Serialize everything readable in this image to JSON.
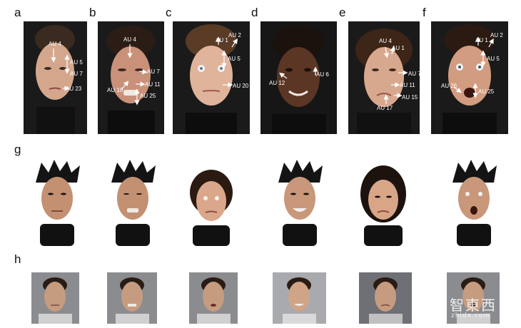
{
  "panels": {
    "a": {
      "label": "a",
      "aus": [
        "AU 4",
        "AU 5",
        "AU 7",
        "AU 23"
      ]
    },
    "b": {
      "label": "b",
      "aus": [
        "AU 4",
        "AU 7",
        "AU 10",
        "AU 11",
        "AU 25"
      ]
    },
    "c": {
      "label": "c",
      "aus": [
        "AU 1",
        "AU 2",
        "AU 5",
        "AU 20"
      ]
    },
    "d": {
      "label": "d",
      "aus": [
        "AU 12",
        "AU 6"
      ]
    },
    "e": {
      "label": "e",
      "aus": [
        "AU 4",
        "AU 1",
        "AU 7",
        "AU 11",
        "AU 15",
        "AU 17"
      ]
    },
    "f": {
      "label": "f",
      "aus": [
        "AU 1",
        "AU 2",
        "AU 5",
        "AU 26",
        "AU 25"
      ]
    },
    "g": {
      "label": "g"
    },
    "h": {
      "label": "h"
    }
  },
  "watermark": {
    "main": "智東西",
    "sub": "zhidx.com"
  },
  "colors": {
    "photo_bg_dark": "#1a1a1a",
    "photo_bg_grey": "#8a8c90",
    "arrow": "#ffffff"
  }
}
